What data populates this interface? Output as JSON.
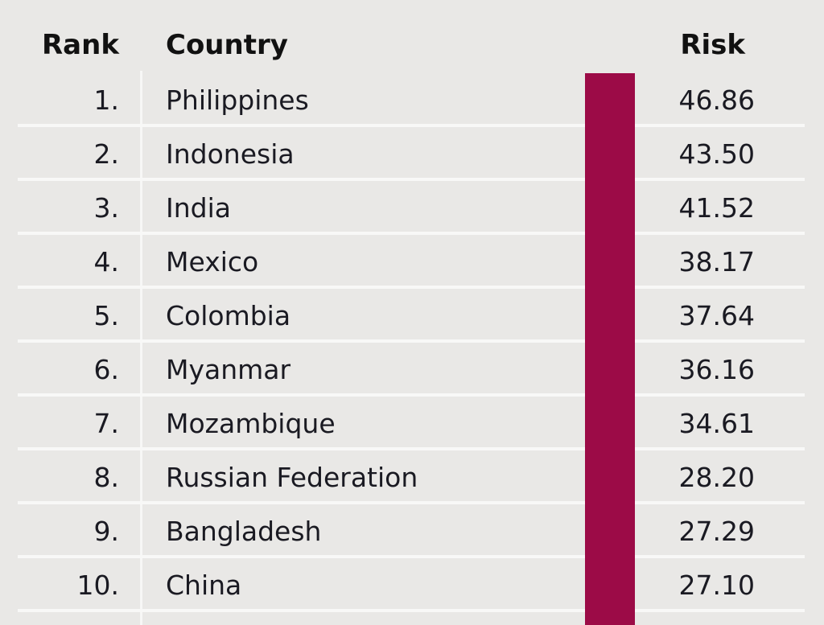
{
  "header": {
    "rank": "Rank",
    "country": "Country",
    "risk": "Risk"
  },
  "chart_data": {
    "type": "table",
    "columns": [
      "Rank",
      "Country",
      "Risk"
    ],
    "rows": [
      {
        "rank": "1.",
        "country": "Philippines",
        "risk": "46.86"
      },
      {
        "rank": "2.",
        "country": "Indonesia",
        "risk": "43.50"
      },
      {
        "rank": "3.",
        "country": "India",
        "risk": "41.52"
      },
      {
        "rank": "4.",
        "country": "Mexico",
        "risk": "38.17"
      },
      {
        "rank": "5.",
        "country": "Colombia",
        "risk": "37.64"
      },
      {
        "rank": "6.",
        "country": "Myanmar",
        "risk": "36.16"
      },
      {
        "rank": "7.",
        "country": "Mozambique",
        "risk": "34.61"
      },
      {
        "rank": "8.",
        "country": "Russian Federation",
        "risk": "28.20"
      },
      {
        "rank": "9.",
        "country": "Bangladesh",
        "risk": "27.29"
      },
      {
        "rank": "10.",
        "country": "China",
        "risk": "27.10"
      }
    ],
    "bar_color": "#9c0b47"
  }
}
